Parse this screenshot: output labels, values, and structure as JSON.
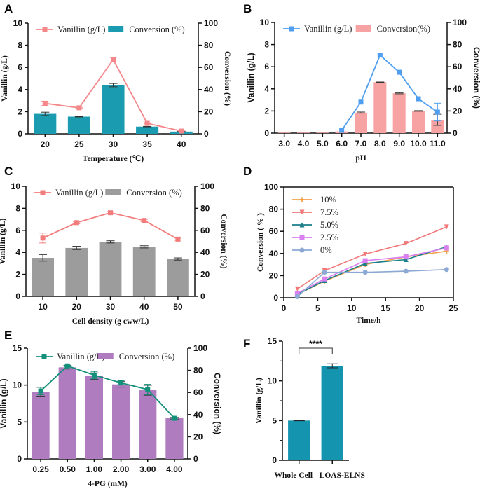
{
  "chart_data": [
    {
      "panel": "A",
      "type": "bar+line",
      "xlabel": "Temperature (℃)",
      "ylabel": "Vanillin (g/L)",
      "ylabel_right": "Conversion (%)",
      "categories": [
        "20",
        "25",
        "30",
        "35",
        "40"
      ],
      "ylim": [
        0,
        10
      ],
      "yticks": [
        "0",
        "2",
        "4",
        "6",
        "8",
        "10"
      ],
      "ylim_right": [
        0,
        100
      ],
      "yticks_right": [
        "0",
        "20",
        "40",
        "60",
        "80",
        "100"
      ],
      "bar_series": {
        "name": "Conversion (%)",
        "values": [
          18,
          15.5,
          44,
          6.5,
          2
        ],
        "errors": [
          1.5,
          0.3,
          1.5,
          0.2,
          0.3
        ],
        "color": "#1a9bb0"
      },
      "line_series": {
        "name": "Vanillin (g/L)",
        "values": [
          2.75,
          2.35,
          6.7,
          0.95,
          0.25
        ],
        "errors": [
          0.2,
          0.05,
          0.2,
          0.05,
          0.05
        ],
        "color": "#f4878a"
      }
    },
    {
      "panel": "B",
      "type": "bar+line",
      "xlabel": "pH",
      "ylabel": "Vanillin (g/L)",
      "ylabel_right": "Conversion (%)",
      "categories": [
        "3.0",
        "4.0",
        "5.0",
        "6.0",
        "7.0",
        "8.0",
        "9.0",
        "10.0",
        "11.0"
      ],
      "ylim": [
        0,
        10
      ],
      "yticks": [
        "0",
        "2",
        "4",
        "6",
        "8",
        "10"
      ],
      "ylim_right": [
        0,
        100
      ],
      "yticks_right": [
        "0",
        "20",
        "40",
        "60",
        "80",
        "100"
      ],
      "bar_series": {
        "name": "Conversion(%)",
        "values": [
          0.5,
          0.5,
          0.5,
          1.5,
          18.5,
          46,
          36,
          20,
          12
        ],
        "errors": [
          0,
          0,
          0,
          0,
          0.5,
          0.2,
          0.5,
          0.3,
          5
        ],
        "color": "#f7a3a3"
      },
      "line_series": {
        "name": "Vanillin (g/L)",
        "values": [
          null,
          null,
          null,
          0.25,
          2.8,
          7.05,
          5.5,
          3.1,
          1.9
        ],
        "errors": [
          0,
          0,
          0,
          0,
          0,
          0,
          0,
          0,
          0.8
        ],
        "color": "#4f9ef0"
      }
    },
    {
      "panel": "C",
      "type": "bar+line",
      "xlabel": "Cell density (g cww/L)",
      "ylabel": "Vanillin (g/L)",
      "ylabel_right": "Conversion (%)",
      "categories": [
        "10",
        "20",
        "30",
        "40",
        "50"
      ],
      "ylim": [
        0,
        10
      ],
      "yticks": [
        "0",
        "2",
        "4",
        "6",
        "8",
        "10"
      ],
      "ylim_right": [
        0,
        100
      ],
      "yticks_right": [
        "0",
        "20",
        "40",
        "60",
        "80",
        "100"
      ],
      "bar_series": {
        "name": "Conversion  (%)",
        "values": [
          35,
          44,
          49.5,
          45,
          34
        ],
        "errors": [
          3,
          1.5,
          1,
          1,
          1
        ],
        "color": "#9c9c9c"
      },
      "line_series": {
        "name": "Vanillin (g/L)",
        "values": [
          5.3,
          6.7,
          7.6,
          6.9,
          5.2
        ],
        "errors": [
          0.45,
          0.1,
          0.1,
          0.1,
          0.1
        ],
        "color": "#f27c7c"
      }
    },
    {
      "panel": "D",
      "type": "line",
      "xlabel": "Time/h",
      "ylabel": "Conversion ( % )",
      "xlim": [
        0,
        25
      ],
      "xticks": [
        "0",
        "5",
        "10",
        "15",
        "20",
        "25"
      ],
      "ylim": [
        0,
        100
      ],
      "yticks": [
        "0",
        "20",
        "40",
        "60",
        "80",
        "100"
      ],
      "x": [
        2,
        6,
        12,
        18,
        24
      ],
      "series": [
        {
          "name": "10%",
          "values": [
            3,
            15,
            30,
            37,
            42
          ],
          "color": "#f5a04a",
          "marker": "plus"
        },
        {
          "name": "7.5%",
          "values": [
            8,
            24.5,
            39.5,
            49,
            64
          ],
          "color": "#f07878",
          "marker": "triangle-down"
        },
        {
          "name": "5.0%",
          "values": [
            3,
            15.5,
            31,
            34.5,
            46
          ],
          "color": "#1a7f8a",
          "marker": "triangle-up"
        },
        {
          "name": "2.5%",
          "values": [
            4,
            17,
            33.5,
            37,
            45
          ],
          "color": "#d97ff0",
          "marker": "square"
        },
        {
          "name": "0%",
          "values": [
            1,
            23,
            23,
            24,
            25.5
          ],
          "color": "#8ca9d4",
          "marker": "circle"
        }
      ]
    },
    {
      "panel": "E",
      "type": "bar+line",
      "xlabel": "4-PG (mM)",
      "ylabel": "Vanillin (g/L)",
      "ylabel_right": "Conversion (%)",
      "categories": [
        "0.25",
        "0.50",
        "1.00",
        "2.00",
        "3.00",
        "4.00"
      ],
      "ylim": [
        0,
        15
      ],
      "yticks": [
        "0",
        "5",
        "10",
        "15"
      ],
      "ylim_right": [
        0,
        100
      ],
      "yticks_right": [
        "0",
        "20",
        "40",
        "60",
        "80",
        "100"
      ],
      "bar_series": {
        "name": "Conversion (%)",
        "values": [
          60.7,
          82.7,
          74.7,
          67.3,
          62,
          36.7
        ],
        "errors": [
          4,
          1.5,
          3,
          2.5,
          4.5,
          0.8
        ],
        "color": "#b07cc0"
      },
      "line_series": {
        "name": "Vanillin (g/L)",
        "values": [
          9.2,
          12.6,
          11.35,
          10.3,
          9.4,
          5.5
        ],
        "errors": [
          0.5,
          0.1,
          0.5,
          0.3,
          0.7,
          0.1
        ],
        "color": "#13907a"
      }
    },
    {
      "panel": "F",
      "type": "bar",
      "ylabel": "Vanillin (g/L)",
      "categories": [
        "Whole Cell",
        "LOAS-ELNS"
      ],
      "ylim": [
        0,
        15
      ],
      "yticks": [
        "0",
        "5",
        "10",
        "15"
      ],
      "values": [
        5.0,
        11.9
      ],
      "errors": [
        0.03,
        0.25
      ],
      "color": "#1594b0",
      "significance": "****"
    }
  ]
}
